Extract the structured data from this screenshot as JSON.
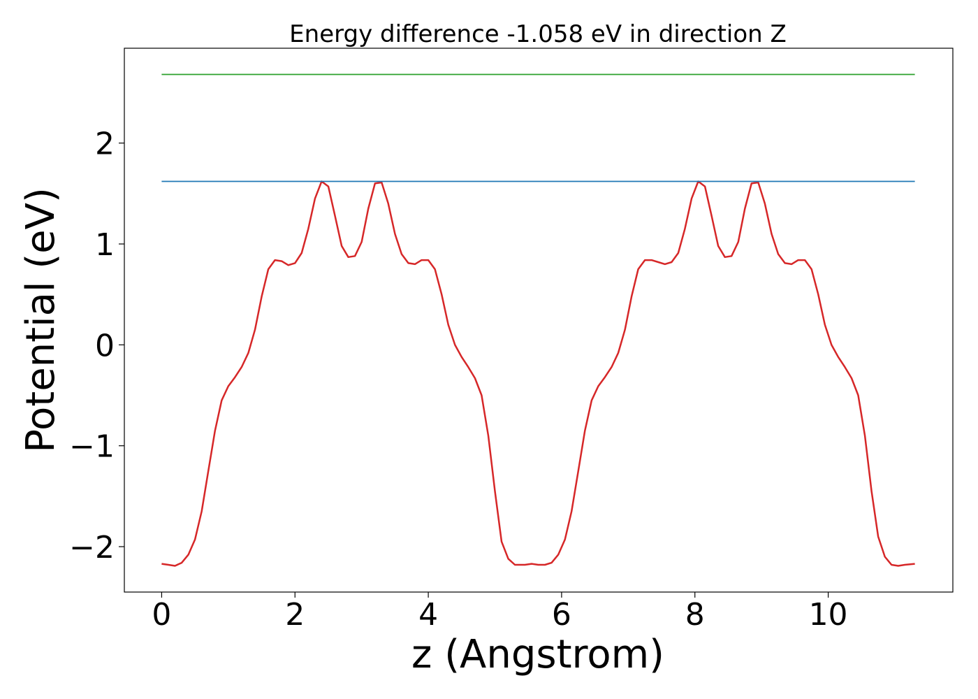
{
  "chart_data": {
    "type": "line",
    "title": "Energy difference -1.058 eV in direction Z",
    "xlabel": "z (Angstrom)",
    "ylabel": "Potential (eV)",
    "xlim": [
      -0.56,
      11.87
    ],
    "ylim": [
      -2.45,
      2.94
    ],
    "x_ticks": [
      0,
      2,
      4,
      6,
      8,
      10
    ],
    "y_ticks": [
      -2,
      -1,
      0,
      1,
      2
    ],
    "x_tick_labels": [
      "0",
      "2",
      "4",
      "6",
      "8",
      "10"
    ],
    "y_tick_labels": [
      "−2",
      "−1",
      "0",
      "1",
      "2"
    ],
    "grid": false,
    "series": [
      {
        "color": "#d62728",
        "points": [
          [
            0.0,
            -2.17
          ],
          [
            0.1,
            -2.18
          ],
          [
            0.2,
            -2.19
          ],
          [
            0.3,
            -2.16
          ],
          [
            0.4,
            -2.08
          ],
          [
            0.5,
            -1.93
          ],
          [
            0.6,
            -1.65
          ],
          [
            0.7,
            -1.25
          ],
          [
            0.8,
            -0.85
          ],
          [
            0.9,
            -0.55
          ],
          [
            1.0,
            -0.41
          ],
          [
            1.1,
            -0.32
          ],
          [
            1.2,
            -0.22
          ],
          [
            1.3,
            -0.08
          ],
          [
            1.4,
            0.15
          ],
          [
            1.5,
            0.48
          ],
          [
            1.6,
            0.75
          ],
          [
            1.7,
            0.84
          ],
          [
            1.8,
            0.83
          ],
          [
            1.9,
            0.79
          ],
          [
            2.0,
            0.81
          ],
          [
            2.1,
            0.91
          ],
          [
            2.2,
            1.15
          ],
          [
            2.3,
            1.45
          ],
          [
            2.4,
            1.62
          ],
          [
            2.5,
            1.57
          ],
          [
            2.6,
            1.28
          ],
          [
            2.7,
            0.98
          ],
          [
            2.8,
            0.87
          ],
          [
            2.9,
            0.88
          ],
          [
            3.0,
            1.02
          ],
          [
            3.1,
            1.35
          ],
          [
            3.2,
            1.6
          ],
          [
            3.3,
            1.61
          ],
          [
            3.4,
            1.4
          ],
          [
            3.5,
            1.1
          ],
          [
            3.6,
            0.9
          ],
          [
            3.7,
            0.81
          ],
          [
            3.8,
            0.8
          ],
          [
            3.9,
            0.84
          ],
          [
            4.0,
            0.84
          ],
          [
            4.1,
            0.75
          ],
          [
            4.2,
            0.5
          ],
          [
            4.3,
            0.2
          ],
          [
            4.4,
            0.0
          ],
          [
            4.5,
            -0.12
          ],
          [
            4.6,
            -0.22
          ],
          [
            4.7,
            -0.33
          ],
          [
            4.8,
            -0.5
          ],
          [
            4.9,
            -0.9
          ],
          [
            5.0,
            -1.45
          ],
          [
            5.1,
            -1.95
          ],
          [
            5.2,
            -2.12
          ],
          [
            5.3,
            -2.18
          ],
          [
            5.45,
            -2.18
          ],
          [
            5.55,
            -2.17
          ],
          [
            5.65,
            -2.18
          ],
          [
            5.75,
            -2.18
          ],
          [
            5.85,
            -2.16
          ],
          [
            5.95,
            -2.08
          ],
          [
            6.05,
            -1.93
          ],
          [
            6.15,
            -1.65
          ],
          [
            6.25,
            -1.25
          ],
          [
            6.35,
            -0.85
          ],
          [
            6.45,
            -0.55
          ],
          [
            6.55,
            -0.41
          ],
          [
            6.65,
            -0.32
          ],
          [
            6.75,
            -0.22
          ],
          [
            6.85,
            -0.08
          ],
          [
            6.95,
            0.15
          ],
          [
            7.05,
            0.48
          ],
          [
            7.15,
            0.75
          ],
          [
            7.25,
            0.84
          ],
          [
            7.35,
            0.84
          ],
          [
            7.45,
            0.82
          ],
          [
            7.55,
            0.8
          ],
          [
            7.65,
            0.82
          ],
          [
            7.75,
            0.91
          ],
          [
            7.85,
            1.15
          ],
          [
            7.95,
            1.45
          ],
          [
            8.05,
            1.62
          ],
          [
            8.15,
            1.57
          ],
          [
            8.25,
            1.28
          ],
          [
            8.35,
            0.98
          ],
          [
            8.45,
            0.87
          ],
          [
            8.55,
            0.88
          ],
          [
            8.65,
            1.02
          ],
          [
            8.75,
            1.35
          ],
          [
            8.85,
            1.6
          ],
          [
            8.95,
            1.61
          ],
          [
            9.05,
            1.4
          ],
          [
            9.15,
            1.1
          ],
          [
            9.25,
            0.9
          ],
          [
            9.35,
            0.81
          ],
          [
            9.45,
            0.8
          ],
          [
            9.55,
            0.84
          ],
          [
            9.65,
            0.84
          ],
          [
            9.75,
            0.75
          ],
          [
            9.85,
            0.5
          ],
          [
            9.95,
            0.2
          ],
          [
            10.05,
            0.0
          ],
          [
            10.15,
            -0.12
          ],
          [
            10.25,
            -0.22
          ],
          [
            10.35,
            -0.33
          ],
          [
            10.45,
            -0.5
          ],
          [
            10.55,
            -0.9
          ],
          [
            10.65,
            -1.45
          ],
          [
            10.75,
            -1.9
          ],
          [
            10.85,
            -2.1
          ],
          [
            10.95,
            -2.18
          ],
          [
            11.05,
            -2.19
          ],
          [
            11.15,
            -2.18
          ],
          [
            11.3,
            -2.17
          ]
        ]
      },
      {
        "color": "#1f77b4",
        "points": [
          [
            0.0,
            1.62
          ],
          [
            11.3,
            1.62
          ]
        ]
      },
      {
        "color": "#2ca02c",
        "points": [
          [
            0.0,
            2.68
          ],
          [
            11.3,
            2.68
          ]
        ]
      }
    ]
  }
}
